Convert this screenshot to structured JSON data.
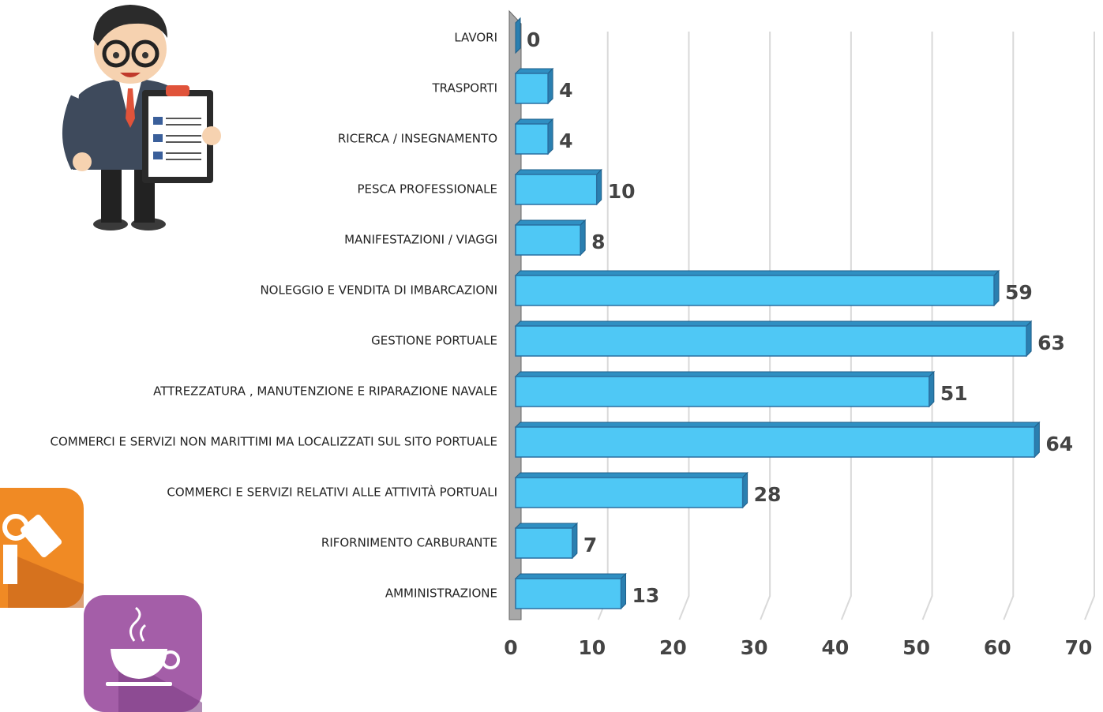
{
  "chart_data": {
    "type": "bar",
    "orientation": "horizontal",
    "categories": [
      "LAVORI",
      "TRASPORTI",
      "RICERCA / INSEGNAMENTO",
      "PESCA PROFESSIONALE",
      "MANIFESTAZIONI / VIAGGI",
      "NOLEGGIO E VENDITA DI IMBARCAZIONI",
      "GESTIONE PORTUALE",
      "ATTREZZATURA , MANUTENZIONE E RIPARAZIONE NAVALE",
      "COMMERCI E SERVIZI NON MARITTIMI MA LOCALIZZATI SUL SITO PORTUALE",
      "COMMERCI E SERVIZI RELATIVI ALLE ATTIVITÀ PORTUALI",
      "RIFORNIMENTO CARBURANTE",
      "AMMINISTRAZIONE"
    ],
    "values": [
      0,
      4,
      4,
      10,
      8,
      59,
      63,
      51,
      64,
      28,
      7,
      13
    ],
    "color": "#4fc8f5",
    "xlim": [
      0,
      70
    ],
    "xticks": [
      0,
      10,
      20,
      30,
      40,
      50,
      60,
      70
    ],
    "grid": true
  }
}
